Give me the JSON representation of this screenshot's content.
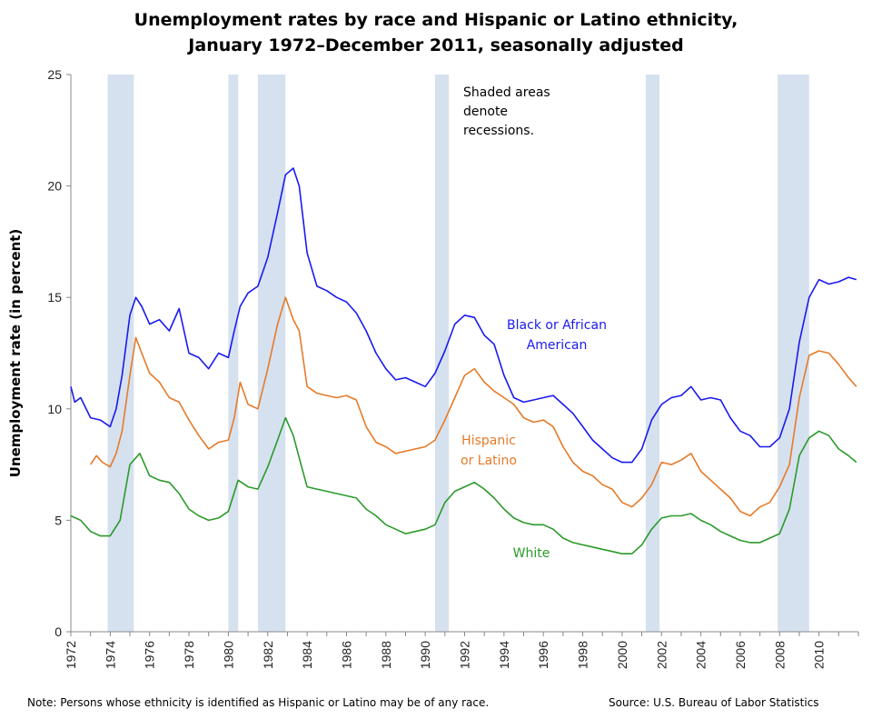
{
  "chart_data": {
    "type": "line",
    "title_line1": "Unemployment rates by race and Hispanic or Latino ethnicity,",
    "title_line2": "January 1972–December 2011, seasonally adjusted",
    "ylabel": "Unemployment rate (in percent)",
    "xlabel": "",
    "ylim": [
      0,
      25
    ],
    "xlim": [
      1972,
      2012
    ],
    "y_ticks": [
      0,
      5,
      10,
      15,
      20,
      25
    ],
    "x_ticks": [
      "1972",
      "1974",
      "1976",
      "1978",
      "1980",
      "1982",
      "1984",
      "1986",
      "1988",
      "1990",
      "1992",
      "1994",
      "1996",
      "1998",
      "2000",
      "2002",
      "2004",
      "2006",
      "2008",
      "2010"
    ],
    "grid": false,
    "shaded_note": [
      "Shaded areas",
      "denote",
      "recessions."
    ],
    "recessions": [
      [
        1973.87,
        1975.2
      ],
      [
        1980.0,
        1980.5
      ],
      [
        1981.5,
        1982.9
      ],
      [
        1990.5,
        1991.2
      ],
      [
        2001.2,
        2001.9
      ],
      [
        2007.9,
        2009.5
      ]
    ],
    "series": [
      {
        "name": "Black or African American",
        "label_lines": [
          "Black or African",
          "American"
        ],
        "color": "#1a1af0",
        "x": [
          1972.0,
          1972.2,
          1972.5,
          1973.0,
          1973.5,
          1974.0,
          1974.3,
          1974.6,
          1975.0,
          1975.3,
          1975.6,
          1976.0,
          1976.5,
          1977.0,
          1977.5,
          1978.0,
          1978.5,
          1979.0,
          1979.5,
          1980.0,
          1980.3,
          1980.6,
          1981.0,
          1981.5,
          1982.0,
          1982.5,
          1982.9,
          1983.3,
          1983.6,
          1984.0,
          1984.5,
          1985.0,
          1985.5,
          1986.0,
          1986.5,
          1987.0,
          1987.5,
          1988.0,
          1988.5,
          1989.0,
          1989.5,
          1990.0,
          1990.5,
          1991.0,
          1991.5,
          1992.0,
          1992.5,
          1993.0,
          1993.5,
          1994.0,
          1994.5,
          1995.0,
          1995.5,
          1996.0,
          1996.5,
          1997.0,
          1997.5,
          1998.0,
          1998.5,
          1999.0,
          1999.5,
          2000.0,
          2000.5,
          2001.0,
          2001.5,
          2002.0,
          2002.5,
          2003.0,
          2003.5,
          2004.0,
          2004.5,
          2005.0,
          2005.5,
          2006.0,
          2006.5,
          2007.0,
          2007.5,
          2008.0,
          2008.5,
          2009.0,
          2009.5,
          2010.0,
          2010.5,
          2011.0,
          2011.5,
          2011.9
        ],
        "values": [
          11.0,
          10.3,
          10.5,
          9.6,
          9.5,
          9.2,
          10.0,
          11.5,
          14.2,
          15.0,
          14.6,
          13.8,
          14.0,
          13.5,
          14.5,
          12.5,
          12.3,
          11.8,
          12.5,
          12.3,
          13.5,
          14.6,
          15.2,
          15.5,
          16.8,
          18.8,
          20.5,
          20.8,
          20.0,
          17.0,
          15.5,
          15.3,
          15.0,
          14.8,
          14.3,
          13.5,
          12.5,
          11.8,
          11.3,
          11.4,
          11.2,
          11.0,
          11.6,
          12.6,
          13.8,
          14.2,
          14.1,
          13.3,
          12.9,
          11.5,
          10.5,
          10.3,
          10.4,
          10.5,
          10.6,
          10.2,
          9.8,
          9.2,
          8.6,
          8.2,
          7.8,
          7.6,
          7.6,
          8.2,
          9.5,
          10.2,
          10.5,
          10.6,
          11.0,
          10.4,
          10.5,
          10.4,
          9.6,
          9.0,
          8.8,
          8.3,
          8.3,
          8.7,
          10.0,
          13.0,
          15.0,
          15.8,
          15.6,
          15.7,
          15.9,
          15.8
        ]
      },
      {
        "name": "Hispanic or Latino",
        "label_lines": [
          "Hispanic",
          "or Latino"
        ],
        "color": "#e67a28",
        "x": [
          1973.0,
          1973.3,
          1973.6,
          1974.0,
          1974.3,
          1974.6,
          1975.0,
          1975.3,
          1975.6,
          1976.0,
          1976.5,
          1977.0,
          1977.5,
          1978.0,
          1978.5,
          1979.0,
          1979.5,
          1980.0,
          1980.3,
          1980.6,
          1981.0,
          1981.5,
          1982.0,
          1982.5,
          1982.9,
          1983.3,
          1983.6,
          1984.0,
          1984.5,
          1985.0,
          1985.5,
          1986.0,
          1986.5,
          1987.0,
          1987.5,
          1988.0,
          1988.5,
          1989.0,
          1989.5,
          1990.0,
          1990.5,
          1991.0,
          1991.5,
          1992.0,
          1992.5,
          1993.0,
          1993.5,
          1994.0,
          1994.5,
          1995.0,
          1995.5,
          1996.0,
          1996.5,
          1997.0,
          1997.5,
          1998.0,
          1998.5,
          1999.0,
          1999.5,
          2000.0,
          2000.5,
          2001.0,
          2001.5,
          2002.0,
          2002.5,
          2003.0,
          2003.5,
          2004.0,
          2004.5,
          2005.0,
          2005.5,
          2006.0,
          2006.5,
          2007.0,
          2007.5,
          2008.0,
          2008.5,
          2009.0,
          2009.5,
          2010.0,
          2010.5,
          2011.0,
          2011.5,
          2011.9
        ],
        "values": [
          7.5,
          7.9,
          7.6,
          7.4,
          8.0,
          9.0,
          11.5,
          13.2,
          12.5,
          11.6,
          11.2,
          10.5,
          10.3,
          9.5,
          8.8,
          8.2,
          8.5,
          8.6,
          9.6,
          11.2,
          10.2,
          10.0,
          11.8,
          13.8,
          15.0,
          14.0,
          13.5,
          11.0,
          10.7,
          10.6,
          10.5,
          10.6,
          10.4,
          9.2,
          8.5,
          8.3,
          8.0,
          8.1,
          8.2,
          8.3,
          8.6,
          9.5,
          10.5,
          11.5,
          11.8,
          11.2,
          10.8,
          10.5,
          10.2,
          9.6,
          9.4,
          9.5,
          9.2,
          8.3,
          7.6,
          7.2,
          7.0,
          6.6,
          6.4,
          5.8,
          5.6,
          6.0,
          6.6,
          7.6,
          7.5,
          7.7,
          8.0,
          7.2,
          6.8,
          6.4,
          6.0,
          5.4,
          5.2,
          5.6,
          5.8,
          6.5,
          7.5,
          10.5,
          12.4,
          12.6,
          12.5,
          12.0,
          11.4,
          11.0
        ]
      },
      {
        "name": "White",
        "label_lines": [
          "White"
        ],
        "color": "#2a9a2a",
        "x": [
          1972.0,
          1972.5,
          1973.0,
          1973.5,
          1974.0,
          1974.5,
          1975.0,
          1975.5,
          1976.0,
          1976.5,
          1977.0,
          1977.5,
          1978.0,
          1978.5,
          1979.0,
          1979.5,
          1980.0,
          1980.5,
          1981.0,
          1981.5,
          1982.0,
          1982.5,
          1982.9,
          1983.3,
          1983.6,
          1984.0,
          1984.5,
          1985.0,
          1985.5,
          1986.0,
          1986.5,
          1987.0,
          1987.5,
          1988.0,
          1988.5,
          1989.0,
          1989.5,
          1990.0,
          1990.5,
          1991.0,
          1991.5,
          1992.0,
          1992.5,
          1993.0,
          1993.5,
          1994.0,
          1994.5,
          1995.0,
          1995.5,
          1996.0,
          1996.5,
          1997.0,
          1997.5,
          1998.0,
          1998.5,
          1999.0,
          1999.5,
          2000.0,
          2000.5,
          2001.0,
          2001.5,
          2002.0,
          2002.5,
          2003.0,
          2003.5,
          2004.0,
          2004.5,
          2005.0,
          2005.5,
          2006.0,
          2006.5,
          2007.0,
          2007.5,
          2008.0,
          2008.5,
          2009.0,
          2009.5,
          2010.0,
          2010.5,
          2011.0,
          2011.5,
          2011.9
        ],
        "values": [
          5.2,
          5.0,
          4.5,
          4.3,
          4.3,
          5.0,
          7.5,
          8.0,
          7.0,
          6.8,
          6.7,
          6.2,
          5.5,
          5.2,
          5.0,
          5.1,
          5.4,
          6.8,
          6.5,
          6.4,
          7.4,
          8.6,
          9.6,
          8.8,
          7.8,
          6.5,
          6.4,
          6.3,
          6.2,
          6.1,
          6.0,
          5.5,
          5.2,
          4.8,
          4.6,
          4.4,
          4.5,
          4.6,
          4.8,
          5.8,
          6.3,
          6.5,
          6.7,
          6.4,
          6.0,
          5.5,
          5.1,
          4.9,
          4.8,
          4.8,
          4.6,
          4.2,
          4.0,
          3.9,
          3.8,
          3.7,
          3.6,
          3.5,
          3.5,
          3.9,
          4.6,
          5.1,
          5.2,
          5.2,
          5.3,
          5.0,
          4.8,
          4.5,
          4.3,
          4.1,
          4.0,
          4.0,
          4.2,
          4.4,
          5.5,
          7.9,
          8.7,
          9.0,
          8.8,
          8.2,
          7.9,
          7.6
        ]
      }
    ]
  },
  "footer": {
    "note": "Note: Persons whose ethnicity is identified as Hispanic or Latino may be of any race.",
    "source": "Source: U.S. Bureau of Labor Statistics"
  }
}
